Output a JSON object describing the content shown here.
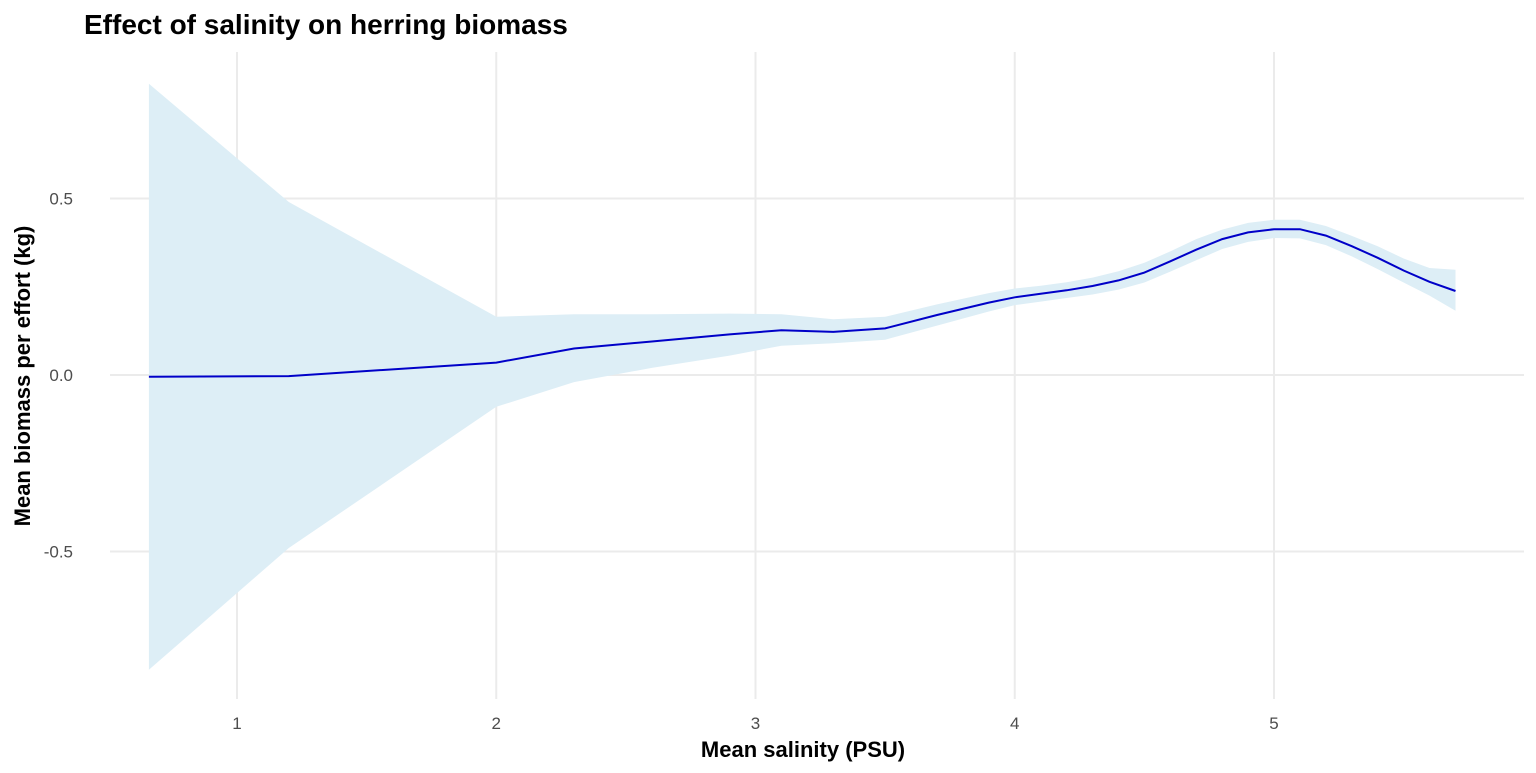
{
  "chart_data": {
    "type": "line",
    "title": "Effect of salinity on herring biomass",
    "xlabel": "Mean salinity (PSU)",
    "ylabel": "Mean biomass per effort (kg)",
    "xlim": [
      0.66,
      5.7
    ],
    "ylim": [
      -0.84,
      0.83
    ],
    "x_ticks": [
      1,
      2,
      3,
      4,
      5
    ],
    "x_tick_labels": [
      "1",
      "2",
      "3",
      "4",
      "5"
    ],
    "y_ticks": [
      -0.5,
      0.0,
      0.5
    ],
    "y_tick_labels": [
      "-0.5",
      "0.0",
      "0.5"
    ],
    "grid": true,
    "colors": {
      "line": "#0000c8",
      "ribbon": "#ddeef6",
      "grid": "#ebebeb"
    },
    "series": [
      {
        "name": "fit",
        "x": [
          0.66,
          1.2,
          2.0,
          2.3,
          2.6,
          2.9,
          3.1,
          3.3,
          3.5,
          3.7,
          3.9,
          4.0,
          4.1,
          4.2,
          4.3,
          4.4,
          4.5,
          4.6,
          4.7,
          4.8,
          4.9,
          5.0,
          5.1,
          5.2,
          5.3,
          5.4,
          5.5,
          5.6,
          5.7
        ],
        "y": [
          -0.005,
          -0.003,
          0.035,
          0.075,
          0.095,
          0.115,
          0.127,
          0.122,
          0.132,
          0.17,
          0.205,
          0.22,
          0.23,
          0.24,
          0.252,
          0.268,
          0.29,
          0.322,
          0.355,
          0.385,
          0.404,
          0.413,
          0.413,
          0.395,
          0.365,
          0.332,
          0.296,
          0.264,
          0.238
        ],
        "lower": [
          -0.835,
          -0.49,
          -0.09,
          -0.02,
          0.02,
          0.055,
          0.083,
          0.09,
          0.1,
          0.14,
          0.18,
          0.198,
          0.208,
          0.218,
          0.228,
          0.242,
          0.262,
          0.293,
          0.325,
          0.357,
          0.377,
          0.388,
          0.387,
          0.368,
          0.336,
          0.3,
          0.262,
          0.225,
          0.182
        ],
        "upper": [
          0.825,
          0.49,
          0.165,
          0.172,
          0.172,
          0.174,
          0.172,
          0.158,
          0.165,
          0.2,
          0.232,
          0.245,
          0.253,
          0.263,
          0.276,
          0.294,
          0.318,
          0.35,
          0.385,
          0.412,
          0.431,
          0.44,
          0.44,
          0.422,
          0.394,
          0.365,
          0.33,
          0.303,
          0.298
        ]
      }
    ]
  }
}
